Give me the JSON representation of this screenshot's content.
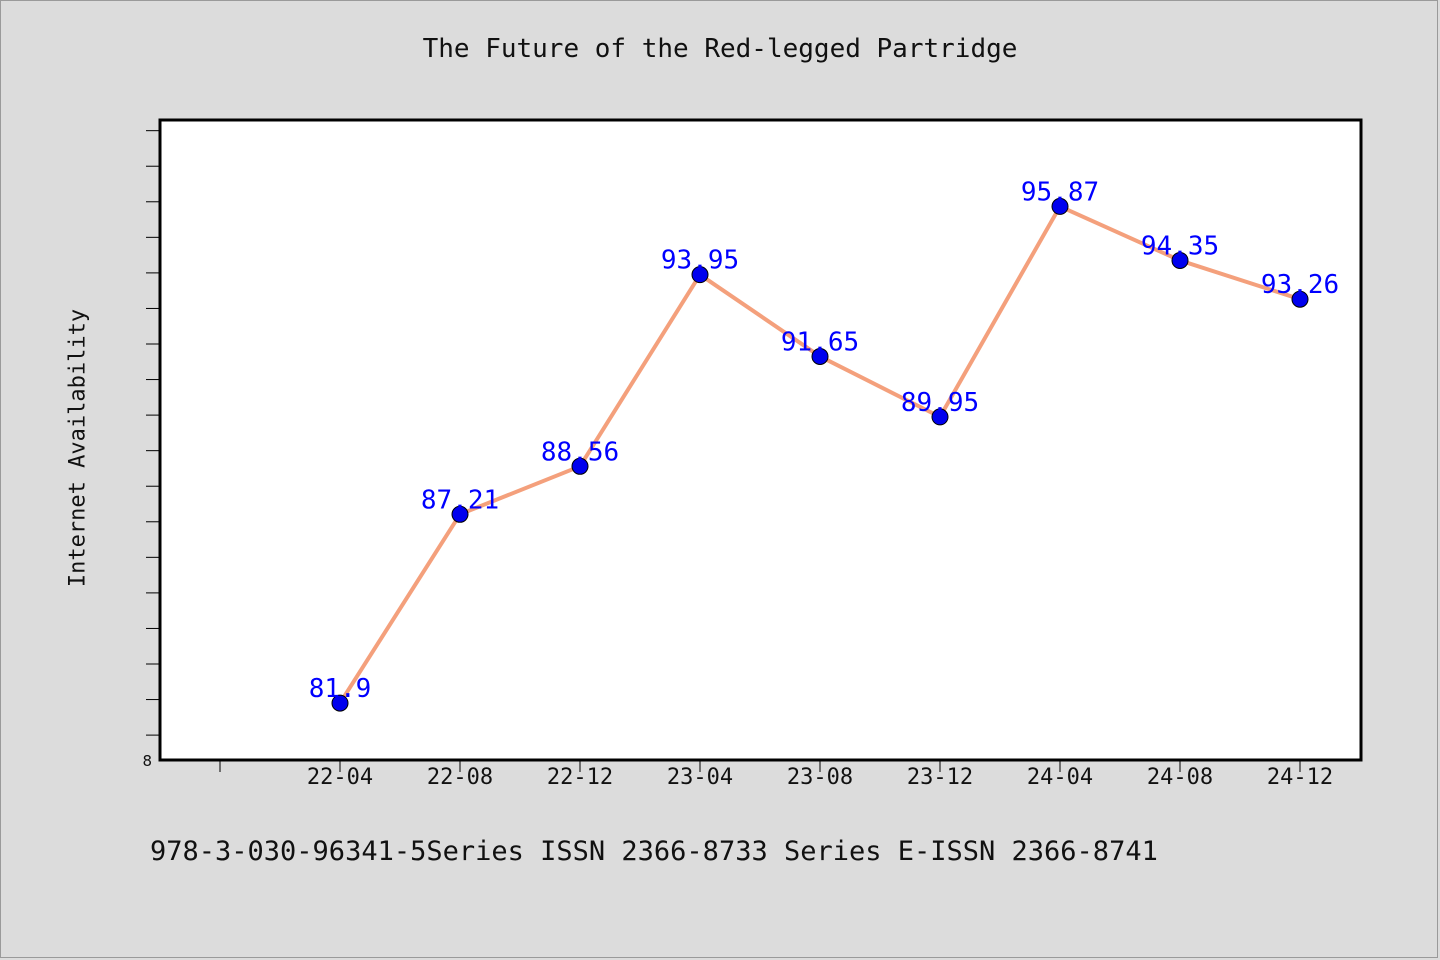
{
  "chart_data": {
    "type": "line",
    "title": "The Future of the Red-legged Partridge",
    "xlabel": "",
    "ylabel": "Internet Availability",
    "categories": [
      "22-04",
      "22-08",
      "22-12",
      "23-04",
      "23-08",
      "23-12",
      "24-04",
      "24-08",
      "24-12"
    ],
    "series": [
      {
        "values": [
          81.9,
          87.21,
          88.56,
          93.95,
          91.65,
          89.95,
          95.87,
          94.35,
          93.26
        ],
        "data_labels": [
          "81.9",
          "87.21",
          "88.56",
          "93.95",
          "91.65",
          "89.95",
          "95.87",
          "94.35",
          "93.26"
        ]
      }
    ],
    "y_tick_labels": [
      "8"
    ],
    "ylim": [
      80.3,
      98.3
    ],
    "grid": false,
    "colors": {
      "line": "#f4a07c",
      "marker": "#0000ee",
      "data_label": "#0000ff",
      "background": "#dcdcdc",
      "plot_background": "#ffffff"
    }
  },
  "footer": {
    "text": "978-3-030-96341-5Series ISSN 2366-8733 Series E-ISSN 2366-8741"
  }
}
